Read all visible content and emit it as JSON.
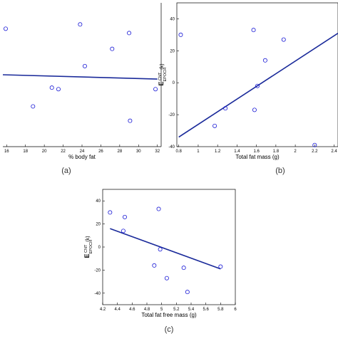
{
  "panel_labels": [
    "(a)",
    "(b)",
    "(c)"
  ],
  "chart_data": [
    {
      "type": "scatter",
      "panel": "(a)",
      "xlabel": "% body fat",
      "ylabel": "",
      "xlim": [
        15.6,
        32.4
      ],
      "ylim": [
        -50,
        50
      ],
      "xticks": [
        16,
        18,
        20,
        22,
        24,
        26,
        28,
        30,
        32
      ],
      "yticks": [],
      "tick_labels_x": [
        "16",
        "18",
        "20",
        "22",
        "24",
        "26",
        "28",
        "30",
        "32"
      ],
      "tick_labels_y": [],
      "points": [
        {
          "x": 15.9,
          "y": 32
        },
        {
          "x": 18.8,
          "y": -22
        },
        {
          "x": 20.8,
          "y": -9
        },
        {
          "x": 21.5,
          "y": -10
        },
        {
          "x": 23.8,
          "y": 35
        },
        {
          "x": 24.3,
          "y": 6
        },
        {
          "x": 27.2,
          "y": 18
        },
        {
          "x": 29.0,
          "y": 29
        },
        {
          "x": 29.1,
          "y": -32
        },
        {
          "x": 31.8,
          "y": -10
        }
      ],
      "fit_line": [
        [
          15.6,
          0
        ],
        [
          32.0,
          -3
        ]
      ]
    },
    {
      "type": "scatter",
      "panel": "(b)",
      "xlabel": "Total fat mass (g)",
      "ylabel": "E EPOCH CNT (k)",
      "ylabel_main": "E",
      "ylabel_sup": "CNT",
      "ylabel_sub": "EPOCH",
      "ylabel_unit": "(k)",
      "xlim": [
        0.78,
        2.44
      ],
      "ylim": [
        -40,
        50
      ],
      "xticks": [
        0.8,
        1,
        1.2,
        1.4,
        1.6,
        1.8,
        2,
        2.2,
        2.4
      ],
      "yticks": [
        -40,
        -20,
        0,
        20,
        40
      ],
      "tick_labels_x": [
        "0.8",
        "1",
        "1.2",
        "1.4",
        "1.6",
        "1.8",
        "2",
        "2.2",
        "2.4"
      ],
      "tick_labels_y": [
        "-40",
        "-20",
        "0",
        "20",
        "40"
      ],
      "points": [
        {
          "x": 0.82,
          "y": 30
        },
        {
          "x": 1.17,
          "y": -27
        },
        {
          "x": 1.28,
          "y": -16
        },
        {
          "x": 1.57,
          "y": 33
        },
        {
          "x": 1.58,
          "y": -17
        },
        {
          "x": 1.61,
          "y": -2
        },
        {
          "x": 1.69,
          "y": 14
        },
        {
          "x": 1.88,
          "y": 27
        },
        {
          "x": 2.2,
          "y": -39
        }
      ],
      "fit_line": [
        [
          0.8,
          -34
        ],
        [
          2.44,
          31
        ]
      ]
    },
    {
      "type": "scatter",
      "panel": "(c)",
      "xlabel": "Total fat free mass (g)",
      "ylabel": "E EPOCH CNT (k)",
      "ylabel_main": "E",
      "ylabel_sup": "CNT",
      "ylabel_sub": "EPOCH",
      "ylabel_unit": "(k)",
      "xlim": [
        4.2,
        6.0
      ],
      "ylim": [
        -50,
        50
      ],
      "xticks": [
        4.2,
        4.4,
        4.6,
        4.8,
        5,
        5.2,
        5.4,
        5.6,
        5.8,
        6
      ],
      "yticks": [
        -40,
        -20,
        0,
        20,
        40
      ],
      "tick_labels_x": [
        "4.2",
        "4.4",
        "4.6",
        "4.8",
        "5",
        "5.2",
        "5.4",
        "5.6",
        "5.8",
        "6"
      ],
      "tick_labels_y": [
        "-40",
        "-20",
        "0",
        "20",
        "40"
      ],
      "points": [
        {
          "x": 4.3,
          "y": 30
        },
        {
          "x": 4.48,
          "y": 14
        },
        {
          "x": 4.5,
          "y": 26
        },
        {
          "x": 4.9,
          "y": -16
        },
        {
          "x": 4.96,
          "y": 33
        },
        {
          "x": 4.98,
          "y": -2
        },
        {
          "x": 5.07,
          "y": -27
        },
        {
          "x": 5.3,
          "y": -18
        },
        {
          "x": 5.35,
          "y": -39
        },
        {
          "x": 5.8,
          "y": -17
        }
      ],
      "fit_line": [
        [
          4.3,
          16
        ],
        [
          5.8,
          -19
        ]
      ]
    }
  ]
}
